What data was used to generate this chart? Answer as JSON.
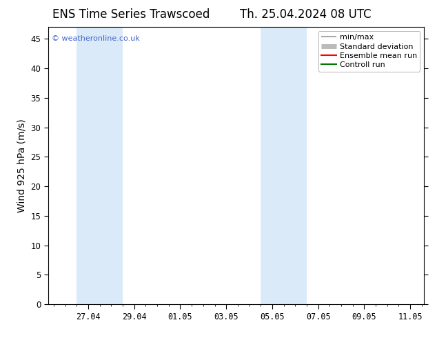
{
  "title_left": "ENS Time Series Trawscoed",
  "title_right": "Th. 25.04.2024 08 UTC",
  "ylabel": "Wind 925 hPa (m/s)",
  "watermark": "© weatheronline.co.uk",
  "ylim": [
    0,
    47
  ],
  "yticks": [
    0,
    5,
    10,
    15,
    20,
    25,
    30,
    35,
    40,
    45
  ],
  "xtick_labels": [
    "27.04",
    "29.04",
    "01.05",
    "03.05",
    "05.05",
    "07.05",
    "09.05",
    "11.05"
  ],
  "shaded_band_color": "#daeaf8",
  "legend_entries": [
    {
      "label": "min/max",
      "color": "#aaaaaa",
      "lw": 1.5
    },
    {
      "label": "Standard deviation",
      "color": "#bbbbbb",
      "lw": 5
    },
    {
      "label": "Ensemble mean run",
      "color": "#ff0000",
      "lw": 1.5
    },
    {
      "label": "Controll run",
      "color": "#007700",
      "lw": 1.5
    }
  ],
  "background_color": "#ffffff",
  "plot_bg_color": "#ffffff",
  "title_fontsize": 12,
  "axis_label_fontsize": 10,
  "tick_fontsize": 8.5,
  "watermark_color": "#4466cc",
  "watermark_fontsize": 8,
  "legend_fontsize": 8
}
